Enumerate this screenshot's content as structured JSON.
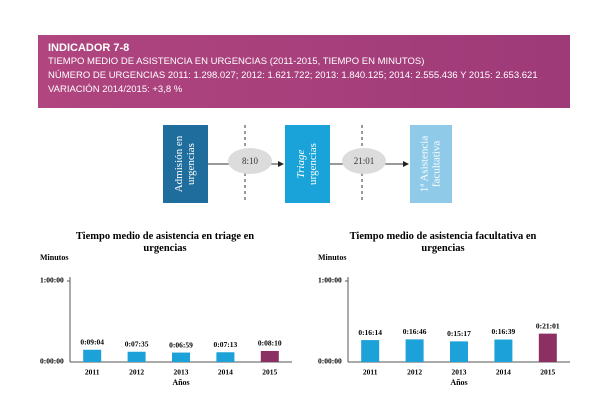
{
  "header": {
    "title": "INDICADOR 7-8",
    "lines": [
      "TIEMPO MEDIO DE ASISTENCIA EN URGENCIAS (2011-2015, TIEMPO EN MINUTOS)",
      "NÚMERO DE URGENCIAS 2011: 1.298.027; 2012: 1.621.722; 2013: 1.840.125; 2014: 2.555.436 Y 2015: 2.653.621",
      "VARIACIÓN 2014/2015: +3,8 %"
    ]
  },
  "diagram": {
    "boxes": [
      {
        "lines": [
          "Admisión en",
          "urgencias"
        ]
      },
      {
        "lines": [
          "Triage",
          "urgencias"
        ]
      },
      {
        "lines": [
          "1ª Asistencia",
          "facultativa"
        ]
      }
    ],
    "times": [
      "8:10",
      "21:01"
    ]
  },
  "chart_data": [
    {
      "type": "bar",
      "title": "Tiempo medio de asistencia en triage en urgencias",
      "y_label": "Minutos",
      "x_label": "Años",
      "categories": [
        "2011",
        "2012",
        "2013",
        "2014",
        "2015"
      ],
      "values": [
        544,
        455,
        419,
        433,
        490
      ],
      "value_labels": [
        "0:09:04",
        "0:07:35",
        "0:06:59",
        "0:07:13",
        "0:08:10"
      ],
      "colors": [
        "#1da1d9",
        "#1da1d9",
        "#1da1d9",
        "#1da1d9",
        "#8c2f63"
      ],
      "ylim": [
        0,
        3600
      ],
      "yticks": [
        {
          "value": 0,
          "label": "0:00:00"
        },
        {
          "value": 3600,
          "label": "1:00:00"
        }
      ]
    },
    {
      "type": "bar",
      "title": "Tiempo medio de asistencia facultativa en urgencias",
      "y_label": "Minutos",
      "x_label": "Años",
      "categories": [
        "2011",
        "2012",
        "2013",
        "2014",
        "2015"
      ],
      "values": [
        974,
        1006,
        917,
        999,
        1261
      ],
      "value_labels": [
        "0:16:14",
        "0:16:46",
        "0:15:17",
        "0:16:39",
        "0:21:01"
      ],
      "colors": [
        "#1da1d9",
        "#1da1d9",
        "#1da1d9",
        "#1da1d9",
        "#8c2f63"
      ],
      "ylim": [
        0,
        3600
      ],
      "yticks": [
        {
          "value": 0,
          "label": "0:00:00"
        },
        {
          "value": 3600,
          "label": "1:00:00"
        }
      ]
    }
  ]
}
